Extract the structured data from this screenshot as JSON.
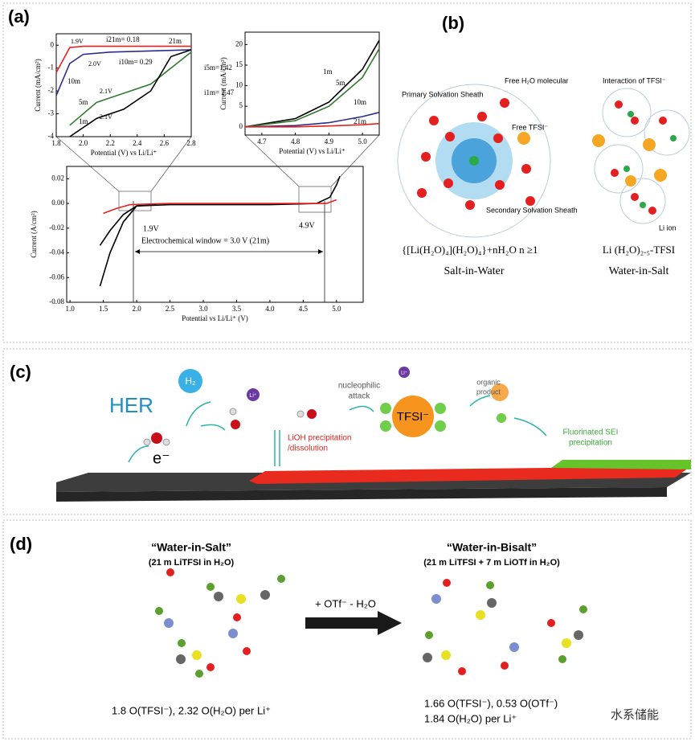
{
  "panel_a": {
    "label": "(a)",
    "main": {
      "type": "line",
      "xlabel": "Potential vs Li/Li⁺ (V)",
      "ylabel": "Current (A/cm²)",
      "xlim": [
        0.95,
        5.4
      ],
      "ylim": [
        -0.08,
        0.03
      ],
      "xticks": [
        {
          "value": 1,
          "label": "1.0"
        },
        1.5,
        {
          "value": 2,
          "label": "2.0"
        },
        2.5,
        {
          "value": 3,
          "label": "3.0"
        },
        3.5,
        {
          "value": 4,
          "label": "4.0"
        },
        4.5,
        {
          "value": 5,
          "label": "5.0"
        }
      ],
      "yticks": [
        0.02,
        {
          "value": 0,
          "label": "0.00"
        },
        -0.02,
        -0.04,
        -0.06,
        -0.08
      ],
      "series": [
        {
          "color": "#000000",
          "x": [
            1.45,
            1.6,
            1.8,
            2.0,
            2.5,
            3.0,
            4.0,
            4.7,
            4.9,
            5.0,
            5.05
          ],
          "values": [
            -0.067,
            -0.04,
            -0.015,
            -0.002,
            -0.001,
            -0.001,
            -0.001,
            0,
            0.005,
            0.015,
            0.022
          ]
        },
        {
          "color": "#000000",
          "x": [
            1.45,
            1.6,
            1.8,
            2.0,
            2.3
          ],
          "values": [
            -0.034,
            -0.022,
            -0.009,
            -0.002,
            -0.001
          ]
        },
        {
          "color": "#e8211c",
          "x": [
            1.5,
            1.7,
            1.9,
            2.5,
            4.5,
            4.85,
            5.0
          ],
          "values": [
            -0.008,
            -0.004,
            -0.001,
            0,
            0,
            0,
            0.003
          ]
        }
      ],
      "annotations": [
        "1.9V",
        "4.9V",
        "Electrochemical window = 3.0 V (21m)"
      ]
    },
    "inset_left": {
      "type": "line",
      "xlabel": "Potential (V) vs Li/Li⁺",
      "ylabel": "Current (mA/cm²)",
      "xlim": [
        1.8,
        2.8
      ],
      "ylim": [
        -4,
        0.5
      ],
      "xticks": [
        1.8,
        {
          "value": 2,
          "label": "2.0"
        },
        2.2,
        2.4,
        2.6,
        2.8
      ],
      "yticks": [
        0,
        -1,
        -2,
        -3,
        -4
      ],
      "series": [
        {
          "name": "21m",
          "color": "#e8211c",
          "x": [
            1.8,
            1.9,
            2.0,
            2.8
          ],
          "values": [
            -1.2,
            -0.1,
            -0.05,
            -0.05
          ]
        },
        {
          "name": "10m",
          "color": "#2c2c8c",
          "x": [
            1.8,
            1.9,
            2.0,
            2.2,
            2.8
          ],
          "values": [
            -2.2,
            -0.8,
            -0.4,
            -0.3,
            -0.2
          ]
        },
        {
          "name": "5m",
          "color": "#2f7a2f",
          "x": [
            1.9,
            2.1,
            2.3,
            2.5,
            2.8
          ],
          "values": [
            -3.5,
            -2.5,
            -2.1,
            -1.7,
            -0.3
          ]
        },
        {
          "name": "1m",
          "color": "#000000",
          "x": [
            1.9,
            2.1,
            2.3,
            2.5,
            2.65,
            2.8
          ],
          "values": [
            -4,
            -3.2,
            -2.8,
            -2,
            -0.5,
            -0.2
          ]
        }
      ],
      "annotations": [
        "1.9V",
        "i21m= 0.18",
        "2.0V",
        "i10m= 0.29",
        "i5m=1.42",
        "2.1V",
        "i1m= 2.47",
        "2.1V"
      ]
    },
    "inset_right": {
      "type": "line",
      "xlabel": "Potential (V) vs Li/Li⁺",
      "ylabel": "Current (mA/cm²)",
      "xlim": [
        4.65,
        5.05
      ],
      "ylim": [
        -2,
        23
      ],
      "xticks": [
        4.7,
        4.8,
        4.9,
        {
          "value": 5,
          "label": "5.0"
        }
      ],
      "yticks": [
        0,
        5,
        10,
        15,
        20
      ],
      "series": [
        {
          "name": "1m",
          "color": "#000000",
          "x": [
            4.65,
            4.8,
            4.9,
            5.0,
            5.05
          ],
          "values": [
            0,
            2,
            6,
            14,
            21
          ]
        },
        {
          "name": "5m",
          "color": "#2f7a2f",
          "x": [
            4.65,
            4.8,
            4.9,
            5.0,
            5.05
          ],
          "values": [
            0,
            1.5,
            5,
            12,
            19
          ]
        },
        {
          "name": "10m",
          "color": "#2c2c8c",
          "x": [
            4.65,
            4.8,
            4.9,
            5.0,
            5.05
          ],
          "values": [
            0,
            0.3,
            1,
            2.5,
            3.5
          ]
        },
        {
          "name": "21m",
          "color": "#e8211c",
          "x": [
            4.65,
            4.8,
            4.9,
            5.0,
            5.05
          ],
          "values": [
            0,
            0,
            0.2,
            0.5,
            0.8
          ]
        }
      ]
    }
  },
  "panel_b": {
    "label": "(b)",
    "labels": [
      "Free H₂O molecular",
      "Primary  Solvation Sheath",
      "Free TFSI⁻",
      "Secondary Solvation Sheath",
      "Interaction of TFSI⁻",
      "Li ion"
    ],
    "formula_left": "{[Li(H₂O)₄](H₂O)₄}+nH₂O n ≥1",
    "caption_left": "Salt-in-Water",
    "formula_right": "Li (H₂O)₂.₅-TFSI",
    "caption_right": "Water-in-Salt"
  },
  "panel_c": {
    "label": "(c)",
    "labels": [
      "HER",
      "H₂",
      "e⁻",
      "Li⁺",
      "LiOH precipitation",
      "/dissolution",
      "nucleophilic",
      "attack",
      "TFSI⁻",
      "Li⁺",
      "organic",
      "product",
      "Fluorinated SEI",
      "precipitation"
    ]
  },
  "panel_d": {
    "label": "(d)",
    "left_title": "“Water-in-Salt”",
    "left_subtitle": "(21 m LiTFSI in H₂O)",
    "right_title": "“Water-in-Bisalt”",
    "right_subtitle": "(21 m LiTFSI + 7 m LiOTf in H₂O)",
    "arrow_label": "+ OTf⁻ - H₂O",
    "left_caption": "1.8 O(TFSI⁻), 2.32 O(H₂O) per Li⁺",
    "right_caption": [
      "1.66 O(TFSI⁻), 0.53 O(OTf⁻)",
      "1.84 O(H₂O) per Li⁺"
    ]
  },
  "watermark": "水系储能"
}
